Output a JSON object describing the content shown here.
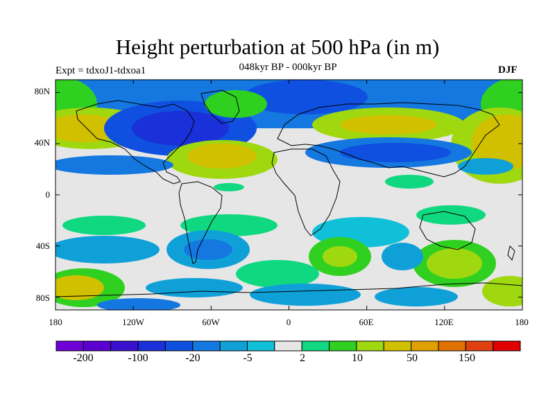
{
  "header": {
    "title": "Height perturbation at 500 hPa (in m)",
    "subtitle": "048kyr BP - 000kyr BP",
    "experiment": "Expt = tdxoJ1-tdxoa1",
    "season": "DJF"
  },
  "map": {
    "lat_ticks": [
      "80N",
      "40N",
      "0",
      "40S",
      "80S"
    ],
    "lon_ticks": [
      "180",
      "120W",
      "60W",
      "0",
      "60E",
      "120E",
      "180"
    ],
    "lat_range": [
      -90,
      90
    ],
    "lon_range": [
      -180,
      180
    ],
    "background_color": "#e6e6e6",
    "coastline_color": "#000000"
  },
  "colorbar": {
    "colors": [
      "#7000d8",
      "#5a00d0",
      "#3a10d0",
      "#1a30d8",
      "#1050e0",
      "#1478e0",
      "#10a0d8",
      "#10c0d8",
      "#e6e6e6",
      "#10d880",
      "#30d020",
      "#a0d810",
      "#d0c000",
      "#e0a000",
      "#e07000",
      "#e04010",
      "#e00000"
    ],
    "labels": [
      "-200",
      "-100",
      "-20",
      "-5",
      "2",
      "10",
      "50",
      "150"
    ]
  },
  "fields": {
    "levels": [
      -200,
      -100,
      -50,
      -20,
      -10,
      -5,
      -2,
      2,
      5,
      10,
      20,
      50,
      100,
      150
    ]
  }
}
